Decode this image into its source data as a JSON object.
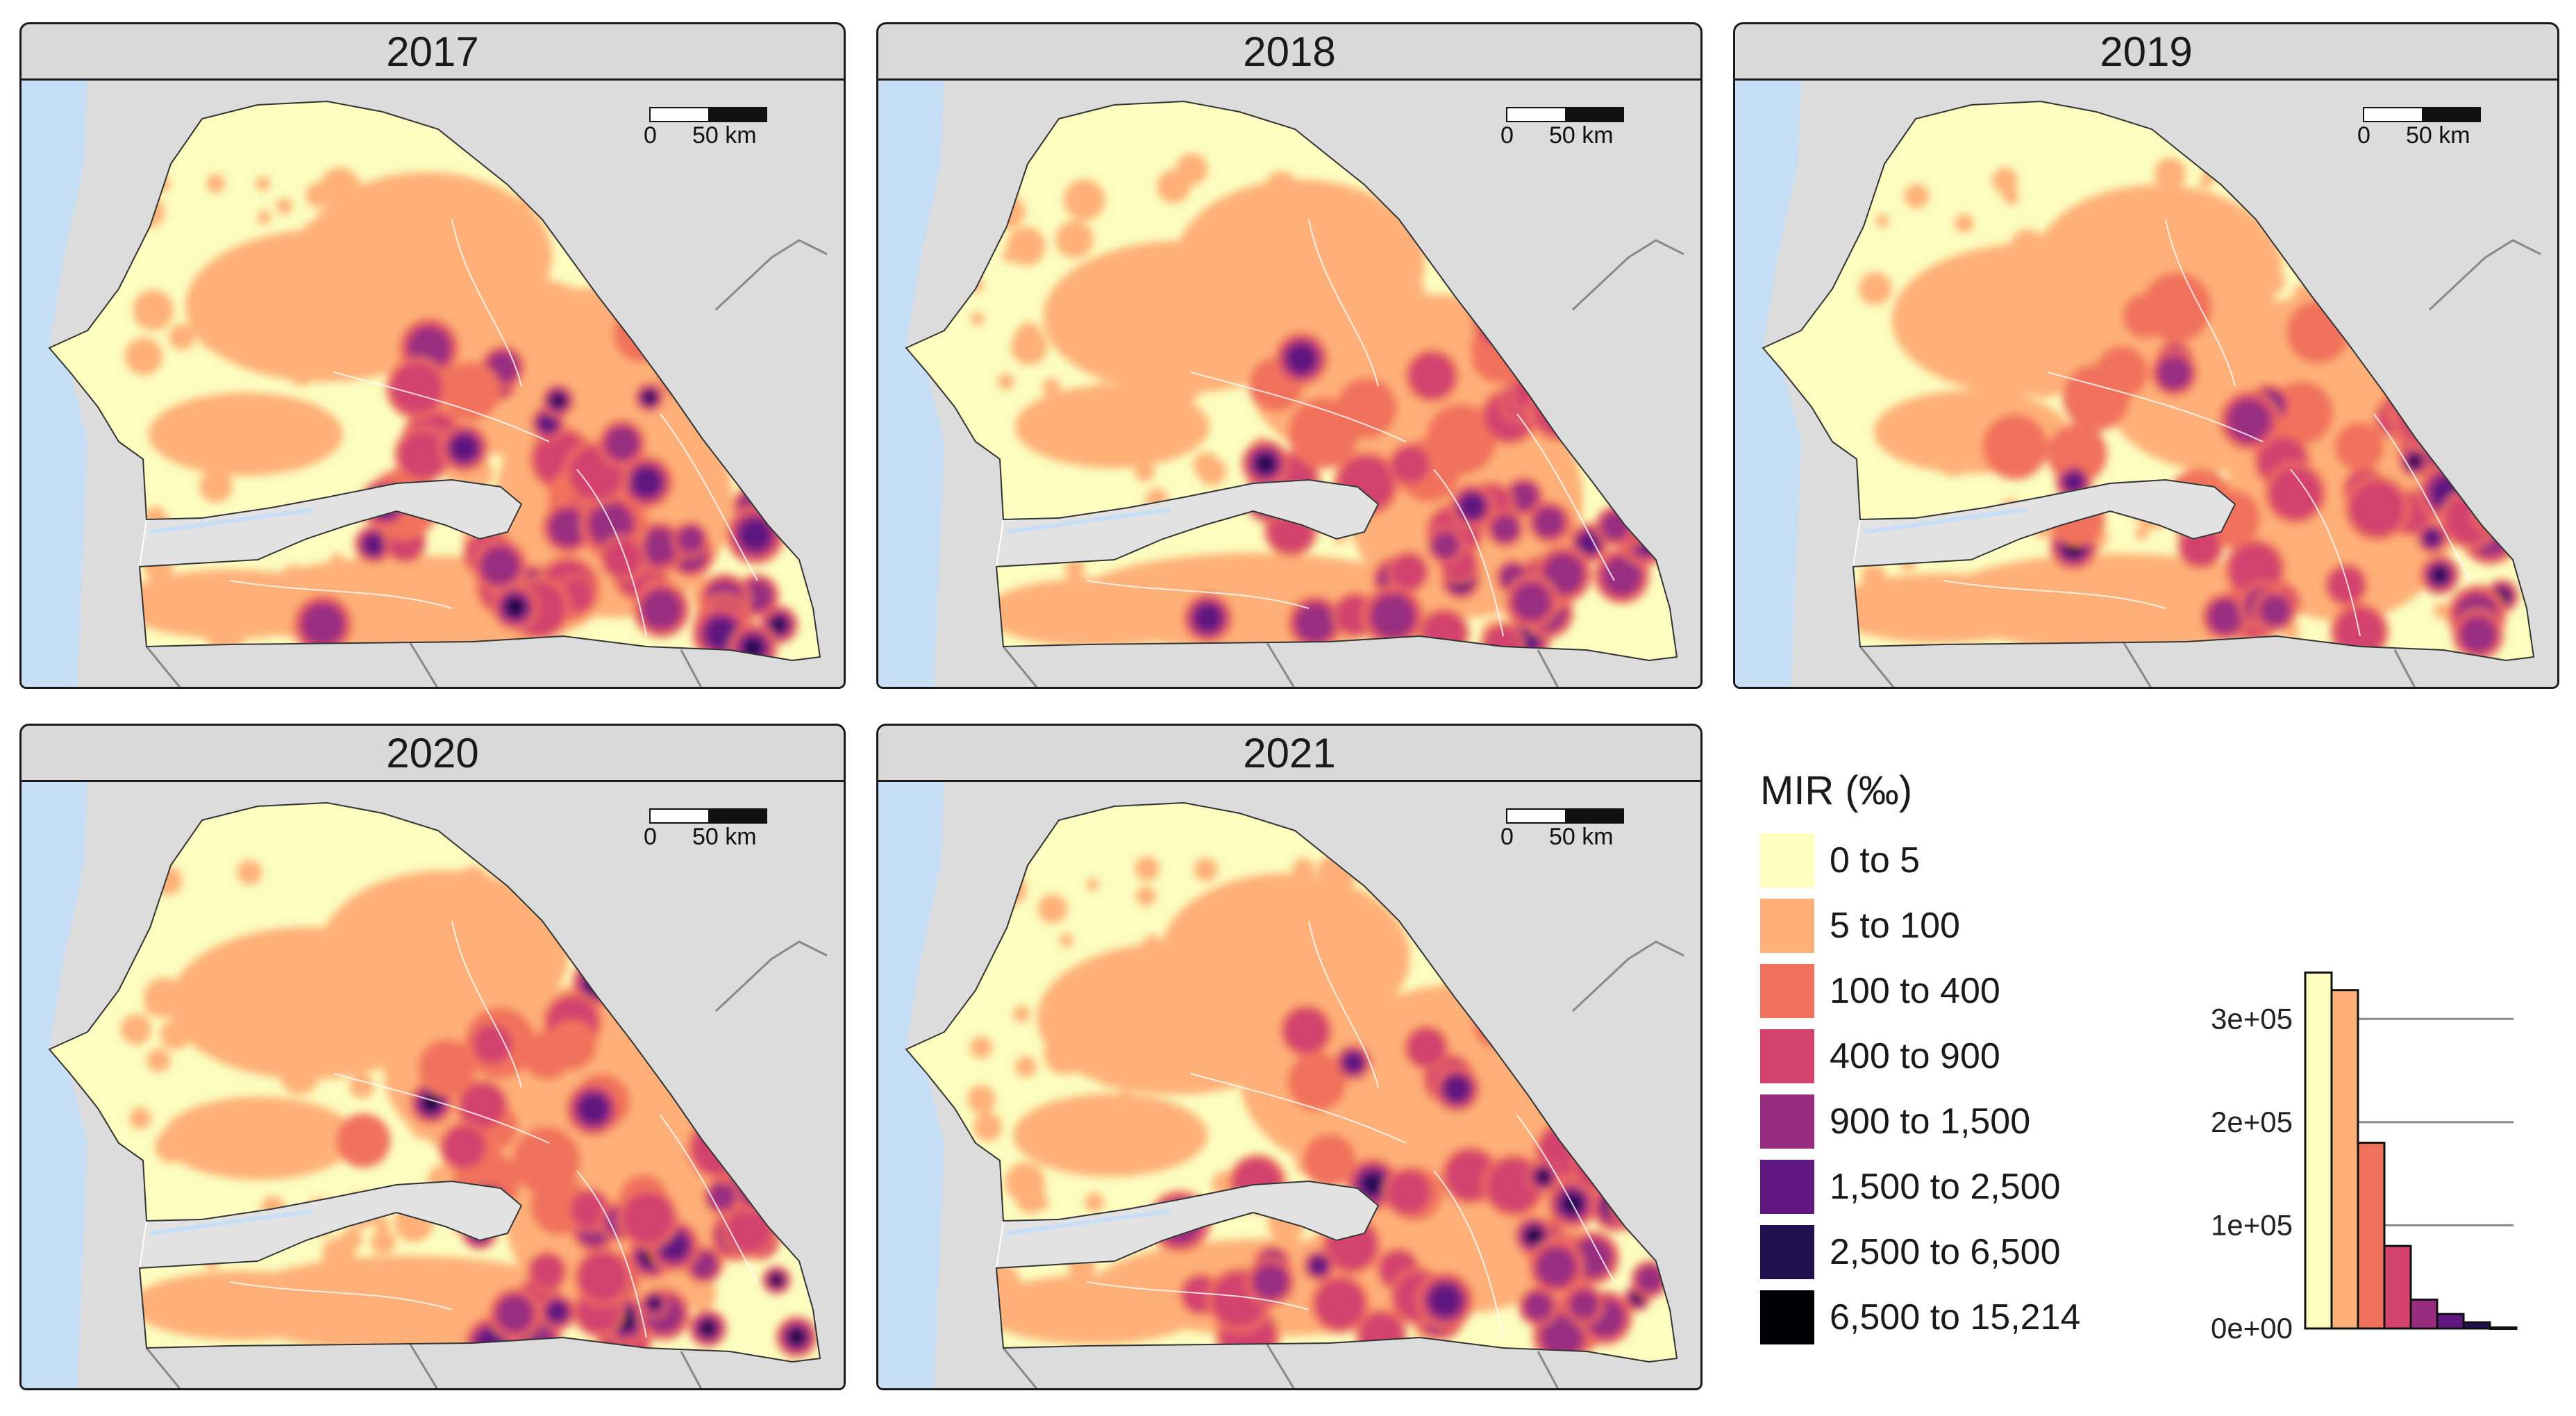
{
  "panels": [
    {
      "year": "2017",
      "seed": 11
    },
    {
      "year": "2018",
      "seed": 23
    },
    {
      "year": "2019",
      "seed": 37
    },
    {
      "year": "2020",
      "seed": 51
    },
    {
      "year": "2021",
      "seed": 67
    }
  ],
  "scalebar": {
    "zero": "0",
    "fifty": "50 km"
  },
  "colors": {
    "ocean": "#c6dff7",
    "land_bg": "#dcdcdc",
    "gambia": "#e2e2e2",
    "border": "#888888"
  },
  "legend": {
    "title": "MIR (‰)",
    "classes": [
      {
        "label": "0 to 5",
        "color": "#fcfdbf"
      },
      {
        "label": "5 to 100",
        "color": "#feb078"
      },
      {
        "label": "100 to 400",
        "color": "#f1725c"
      },
      {
        "label": "400 to 900",
        "color": "#d3436e"
      },
      {
        "label": "900 to 1,500",
        "color": "#982d80"
      },
      {
        "label": "1,500 to 2,500",
        "color": "#5f187f"
      },
      {
        "label": "2,500 to 6,500",
        "color": "#221150"
      },
      {
        "label": "6,500 to 15,214",
        "color": "#000004"
      }
    ]
  },
  "chart_data": {
    "type": "bar",
    "categories": [
      "0 to 5",
      "5 to 100",
      "100 to 400",
      "400 to 900",
      "900 to 1,500",
      "1,500 to 2,500",
      "2,500 to 6,500",
      "6,500 to 15,214"
    ],
    "values": [
      345000,
      328000,
      180000,
      80000,
      28000,
      14000,
      6000,
      1000
    ],
    "ylim": [
      0,
      350000
    ],
    "yticks": [
      "0e+00",
      "1e+05",
      "2e+05",
      "3e+05"
    ],
    "ytick_values": [
      0,
      100000,
      200000,
      300000
    ],
    "grid": true
  }
}
